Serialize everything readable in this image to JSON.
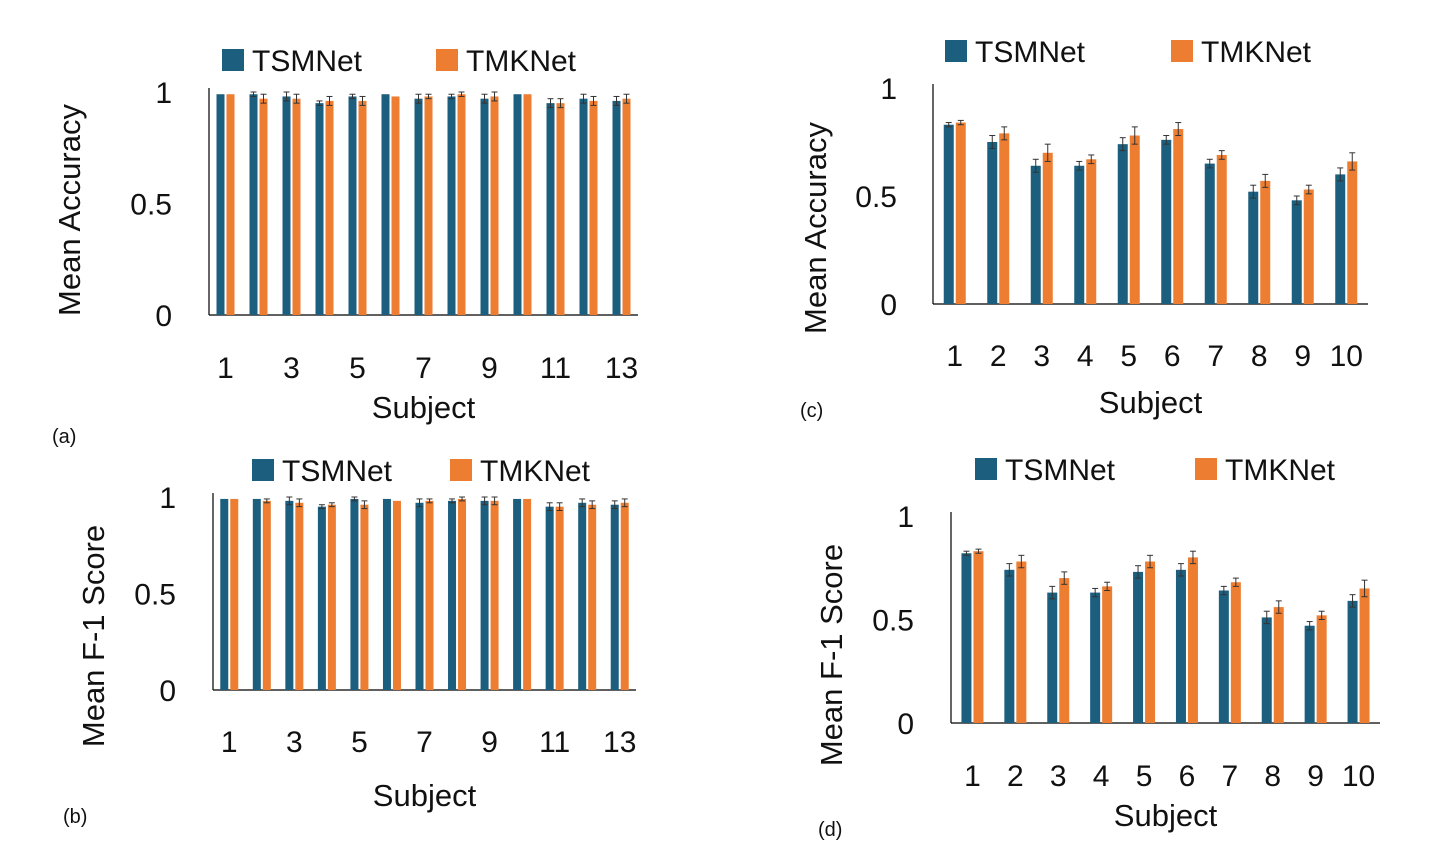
{
  "colors": {
    "tsmnet": "#1b5e7d",
    "tmknet": "#ed7d31",
    "axis": "#000000",
    "error_bar": "#333333"
  },
  "chart_data": [
    {
      "panel_label": "(a)",
      "type": "bar",
      "xlabel": "Subject",
      "ylabel": "Mean Accuracy",
      "ylim": [
        0,
        1
      ],
      "y_ticks": [
        "0",
        "0.5",
        "1"
      ],
      "categories": [
        "1",
        "2",
        "3",
        "4",
        "5",
        "6",
        "7",
        "8",
        "9",
        "10",
        "11",
        "12",
        "13"
      ],
      "x_tick_labels": [
        "1",
        "",
        "3",
        "",
        "5",
        "",
        "7",
        "",
        "9",
        "",
        "11",
        "",
        "13"
      ],
      "legend_position": "top",
      "series": [
        {
          "name": "TSMNet",
          "color": "#1b5e7d",
          "values": [
            0.99,
            0.99,
            0.98,
            0.95,
            0.98,
            0.99,
            0.97,
            0.98,
            0.97,
            0.99,
            0.95,
            0.97,
            0.96
          ],
          "errors": [
            0.0,
            0.01,
            0.02,
            0.01,
            0.01,
            0.0,
            0.02,
            0.01,
            0.02,
            0.0,
            0.02,
            0.02,
            0.02
          ]
        },
        {
          "name": "TMKNet",
          "color": "#ed7d31",
          "values": [
            0.99,
            0.97,
            0.97,
            0.96,
            0.96,
            0.98,
            0.98,
            0.99,
            0.98,
            0.99,
            0.95,
            0.96,
            0.97
          ],
          "errors": [
            0.0,
            0.02,
            0.02,
            0.02,
            0.02,
            0.0,
            0.01,
            0.01,
            0.02,
            0.0,
            0.02,
            0.02,
            0.02
          ]
        }
      ]
    },
    {
      "panel_label": "(b)",
      "type": "bar",
      "xlabel": "Subject",
      "ylabel": "Mean F-1 Score",
      "ylim": [
        0,
        1
      ],
      "y_ticks": [
        "0",
        "0.5",
        "1"
      ],
      "categories": [
        "1",
        "2",
        "3",
        "4",
        "5",
        "6",
        "7",
        "8",
        "9",
        "10",
        "11",
        "12",
        "13"
      ],
      "x_tick_labels": [
        "1",
        "",
        "3",
        "",
        "5",
        "",
        "7",
        "",
        "9",
        "",
        "11",
        "",
        "13"
      ],
      "legend_position": "top",
      "series": [
        {
          "name": "TSMNet",
          "color": "#1b5e7d",
          "values": [
            0.99,
            0.99,
            0.98,
            0.95,
            0.99,
            0.99,
            0.97,
            0.98,
            0.98,
            0.99,
            0.95,
            0.97,
            0.96
          ],
          "errors": [
            0.0,
            0.0,
            0.02,
            0.01,
            0.01,
            0.0,
            0.02,
            0.01,
            0.02,
            0.0,
            0.02,
            0.02,
            0.02
          ]
        },
        {
          "name": "TMKNet",
          "color": "#ed7d31",
          "values": [
            0.99,
            0.98,
            0.97,
            0.96,
            0.96,
            0.98,
            0.98,
            0.99,
            0.98,
            0.99,
            0.95,
            0.96,
            0.97
          ],
          "errors": [
            0.0,
            0.01,
            0.02,
            0.01,
            0.02,
            0.0,
            0.01,
            0.01,
            0.02,
            0.0,
            0.02,
            0.02,
            0.02
          ]
        }
      ]
    },
    {
      "panel_label": "(c)",
      "type": "bar",
      "xlabel": "Subject",
      "ylabel": "Mean  Accuracy",
      "ylim": [
        0,
        1
      ],
      "y_ticks": [
        "0",
        "0.5",
        "1"
      ],
      "categories": [
        "1",
        "2",
        "3",
        "4",
        "5",
        "6",
        "7",
        "8",
        "9",
        "10"
      ],
      "x_tick_labels": [
        "1",
        "2",
        "3",
        "4",
        "5",
        "6",
        "7",
        "8",
        "9",
        "10"
      ],
      "legend_position": "top",
      "series": [
        {
          "name": "TSMNet",
          "color": "#1b5e7d",
          "values": [
            0.83,
            0.75,
            0.64,
            0.64,
            0.74,
            0.76,
            0.65,
            0.52,
            0.48,
            0.6
          ],
          "errors": [
            0.01,
            0.03,
            0.03,
            0.02,
            0.03,
            0.02,
            0.02,
            0.03,
            0.02,
            0.03
          ]
        },
        {
          "name": "TMKNet",
          "color": "#ed7d31",
          "values": [
            0.84,
            0.79,
            0.7,
            0.67,
            0.78,
            0.81,
            0.69,
            0.57,
            0.53,
            0.66
          ],
          "errors": [
            0.01,
            0.03,
            0.04,
            0.02,
            0.04,
            0.03,
            0.02,
            0.03,
            0.02,
            0.04
          ]
        }
      ]
    },
    {
      "panel_label": "(d)",
      "type": "bar",
      "xlabel": "Subject",
      "ylabel": "Mean F-1 Score",
      "ylim": [
        0,
        1
      ],
      "y_ticks": [
        "0",
        "0.5",
        "1"
      ],
      "categories": [
        "1",
        "2",
        "3",
        "4",
        "5",
        "6",
        "7",
        "8",
        "9",
        "10"
      ],
      "x_tick_labels": [
        "1",
        "2",
        "3",
        "4",
        "5",
        "6",
        "7",
        "8",
        "9",
        "10"
      ],
      "legend_position": "top",
      "series": [
        {
          "name": "TSMNet",
          "color": "#1b5e7d",
          "values": [
            0.82,
            0.74,
            0.63,
            0.63,
            0.73,
            0.74,
            0.64,
            0.51,
            0.47,
            0.59
          ],
          "errors": [
            0.01,
            0.03,
            0.03,
            0.02,
            0.03,
            0.03,
            0.02,
            0.03,
            0.02,
            0.03
          ]
        },
        {
          "name": "TMKNet",
          "color": "#ed7d31",
          "values": [
            0.83,
            0.78,
            0.7,
            0.66,
            0.78,
            0.8,
            0.68,
            0.56,
            0.52,
            0.65
          ],
          "errors": [
            0.01,
            0.03,
            0.03,
            0.02,
            0.03,
            0.03,
            0.02,
            0.03,
            0.02,
            0.04
          ]
        }
      ]
    }
  ]
}
